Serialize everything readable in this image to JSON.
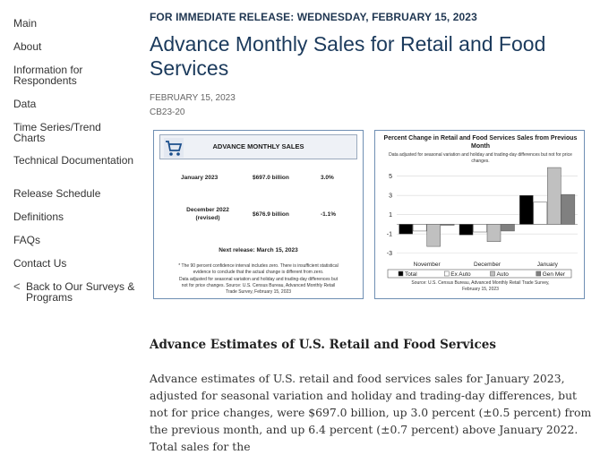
{
  "sidebar": {
    "items": [
      {
        "label": "Main"
      },
      {
        "label": "About"
      },
      {
        "label": "Information for Respondents"
      },
      {
        "label": "Data"
      },
      {
        "label": "Time Series/Trend Charts"
      },
      {
        "label": "Technical Documentation"
      },
      {
        "label": "Release Schedule"
      },
      {
        "label": "Definitions"
      },
      {
        "label": "FAQs"
      },
      {
        "label": "Contact Us"
      }
    ],
    "back": {
      "icon": "chevron-left-icon",
      "glyph": "<",
      "label": "Back to Our Surveys & Programs"
    }
  },
  "release": {
    "kicker": "FOR IMMEDIATE RELEASE: WEDNESDAY, FEBRUARY 15, 2023",
    "title": "Advance Monthly Sales for Retail and Food Services",
    "date": "FEBRUARY 15, 2023",
    "code": "CB23-20"
  },
  "summary_card": {
    "title": "ADVANCE MONTHLY SALES",
    "icon": "shopping-cart-icon",
    "rows": [
      {
        "period": "January 2023",
        "period_note": "",
        "value": "$697.0 billion",
        "change": "3.0%"
      },
      {
        "period": "December 2022",
        "period_note": "(revised)",
        "value": "$676.9 billion",
        "change": "-1.1%"
      }
    ],
    "next_release": "Next release: March 15, 2023",
    "footnote_1": "* The 90 percent confidence interval includes zero. There is insufficient statistical",
    "footnote_2": "evidence to conclude that the actual change is different from zero.",
    "footnote_3": "Data adjusted for seasonal variation and holiday and trading-day differences but",
    "footnote_4": "not for price changes. Source: U.S. Census Bureau, Advanced Monthly Retail",
    "footnote_5": "Trade Survey, February 15, 2023"
  },
  "chart_card": {
    "title": "Percent Change in Retail and Food Services Sales from Previous Month",
    "subtitle": "Data adjusted for seasonal variation and holiday and trading-day differences but not for price changes.",
    "source_1": "Source: U.S. Census Bureau, Advanced Monthly Retail Trade Survey,",
    "source_2": "February 15, 2023"
  },
  "chart_data": {
    "type": "bar",
    "categories": [
      "November",
      "December",
      "January"
    ],
    "series": [
      {
        "name": "Total",
        "color": "#000000",
        "values": [
          -1.0,
          -1.1,
          3.0
        ]
      },
      {
        "name": "Ex Auto",
        "color": "#ffffff",
        "values": [
          -0.7,
          -0.8,
          2.3
        ]
      },
      {
        "name": "Auto",
        "color": "#c0c0c0",
        "values": [
          -2.3,
          -1.8,
          5.9
        ]
      },
      {
        "name": "Gen Mer",
        "color": "#808080",
        "values": [
          -0.1,
          -0.7,
          3.1
        ]
      }
    ],
    "yticks": [
      5,
      3,
      1,
      -1,
      -3
    ],
    "ylim": [
      -3.5,
      6
    ],
    "grid": true,
    "legend": "bottom"
  },
  "article": {
    "heading": "Advance Estimates of U.S. Retail and Food Services",
    "paragraph": "Advance estimates of U.S. retail and food services sales for January 2023, adjusted for seasonal variation and holiday and trading-day differences, but not for price changes, were $697.0 billion, up 3.0 percent (±0.5 percent) from the previous month, and up 6.4 percent (±0.7 percent) above January 2022. Total sales for the"
  }
}
